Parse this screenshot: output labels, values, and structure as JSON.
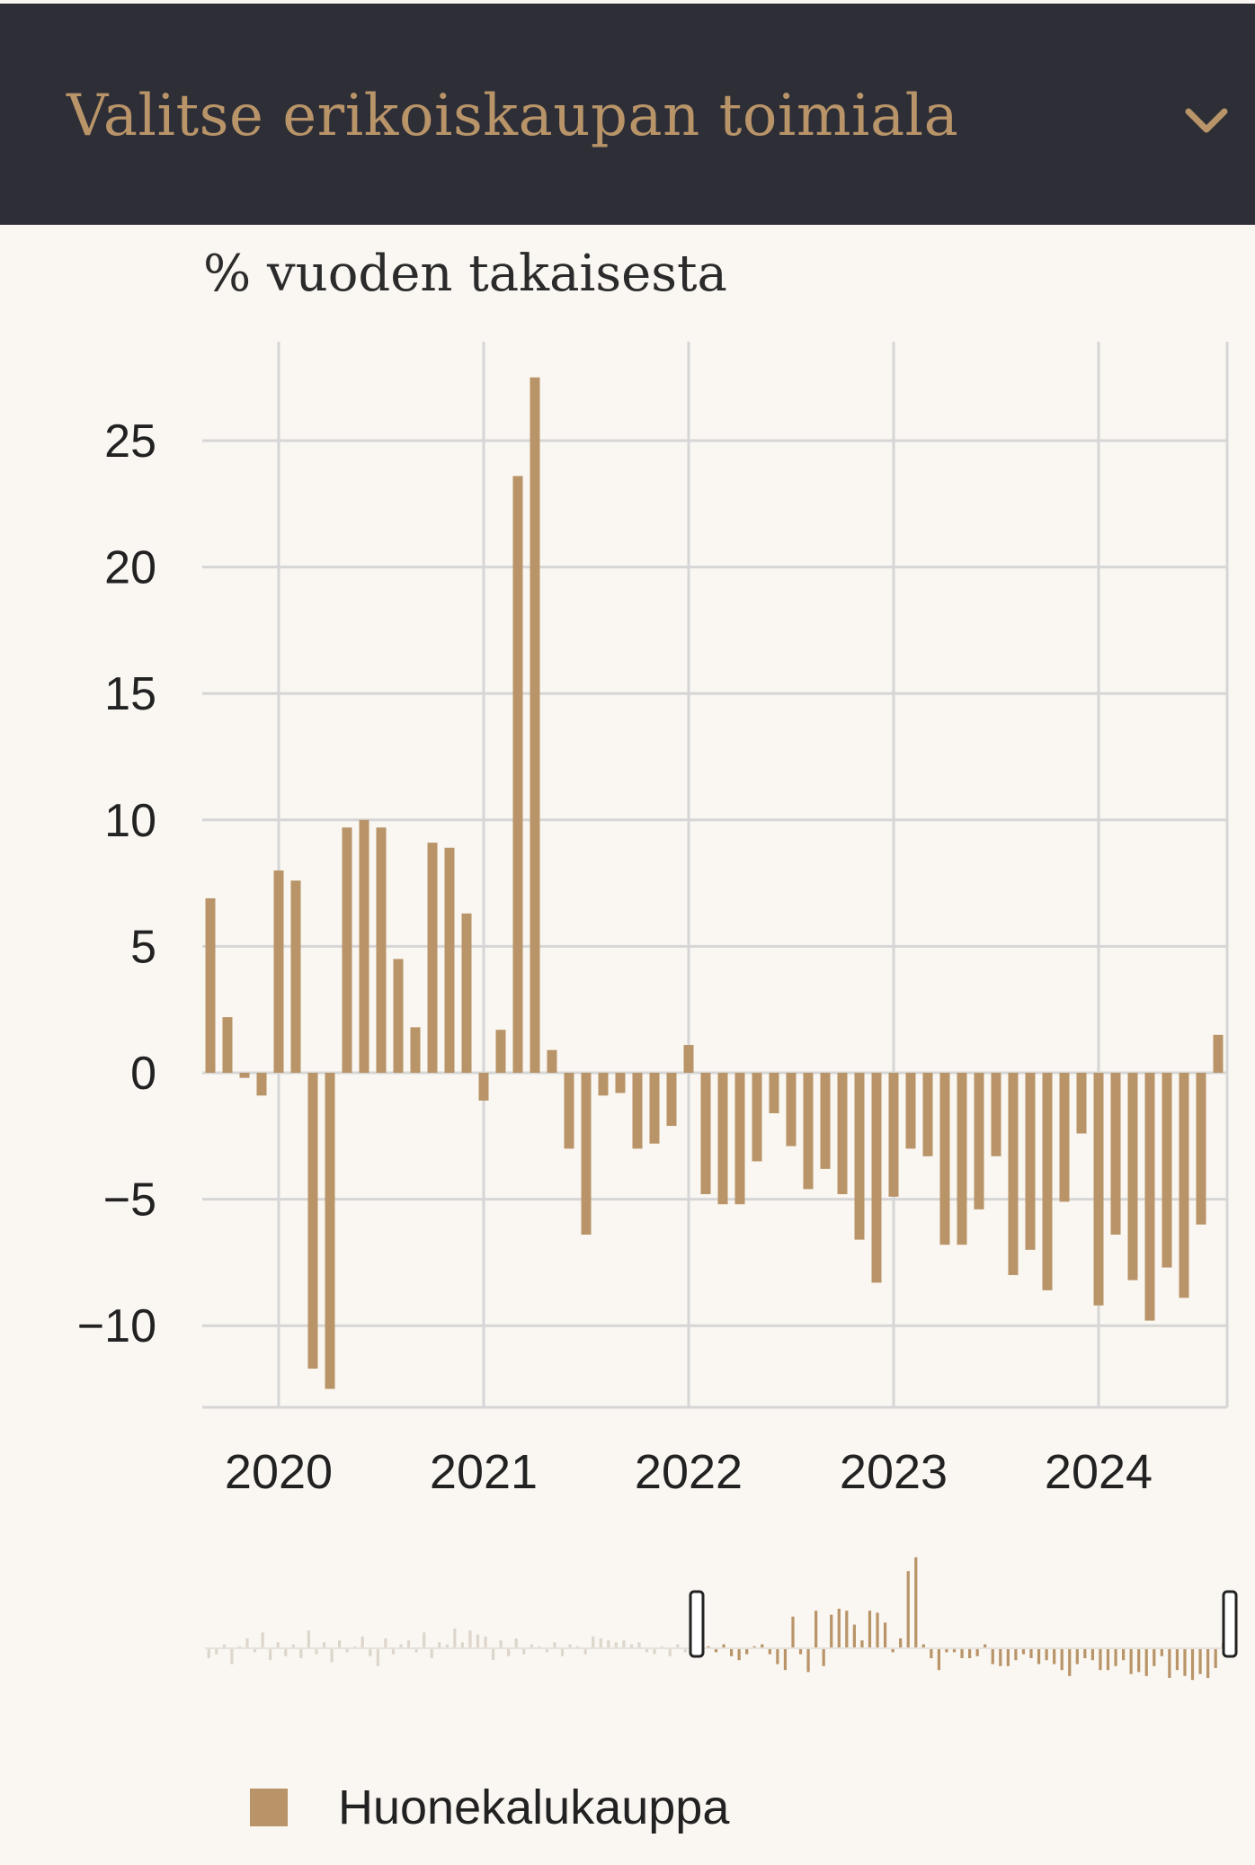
{
  "header": {
    "title": "Valitse erikoiskaupan toimiala",
    "chevron_icon": "chevron-down-icon"
  },
  "colors": {
    "bar": "#b89468",
    "header_bg": "#2e2e37",
    "background": "#faf6f1",
    "grid": "#d6d6d6"
  },
  "chart_data": {
    "type": "bar",
    "ylabel": "% vuoden takaisesta",
    "y_ticks": [
      25,
      20,
      15,
      10,
      5,
      0,
      -5,
      -10
    ],
    "y_tick_labels": [
      "25",
      "20",
      "15",
      "10",
      "5",
      "0",
      "−5",
      "−10"
    ],
    "ylim": [
      -13.3,
      28.8
    ],
    "x_ticks": [
      "2020",
      "2021",
      "2022",
      "2023",
      "2024"
    ],
    "grid": true,
    "series": [
      {
        "name": "Huonekalukauppa",
        "start": "2019-09",
        "values": [
          6.9,
          2.2,
          -0.2,
          -0.9,
          8.0,
          7.6,
          -11.7,
          -12.5,
          9.7,
          10.0,
          9.7,
          4.5,
          1.8,
          9.1,
          8.9,
          6.3,
          -1.1,
          1.7,
          23.6,
          27.5,
          0.9,
          -3.0,
          -6.4,
          -0.9,
          -0.8,
          -3.0,
          -2.8,
          -2.1,
          1.1,
          -4.8,
          -5.2,
          -5.2,
          -3.5,
          -1.6,
          -2.9,
          -4.6,
          -3.8,
          -4.8,
          -6.6,
          -8.3,
          -4.9,
          -3.0,
          -3.3,
          -6.8,
          -6.8,
          -5.4,
          -3.3,
          -8.0,
          -7.0,
          -8.6,
          -5.1,
          -2.4,
          -9.2,
          -6.4,
          -8.2,
          -9.8,
          -7.7,
          -8.9,
          -6.0,
          1.5
        ]
      }
    ],
    "navigator_series": [
      -0.5,
      -0.3,
      0.2,
      -0.8,
      0.1,
      0.5,
      -0.2,
      0.8,
      -0.6,
      0.3,
      -0.4,
      0.2,
      -0.5,
      0.9,
      -0.3,
      0.3,
      -0.7,
      0.4,
      -0.2,
      0.1,
      0.6,
      -0.4,
      -0.9,
      0.5,
      -0.3,
      0.2,
      0.4,
      -0.2,
      0.8,
      -0.5,
      0.3,
      0.2,
      1.0,
      0.3,
      0.9,
      0.7,
      0.6,
      -0.6,
      0.4,
      -0.4,
      0.5,
      -0.3,
      0.2,
      0.1,
      -0.2,
      0.3,
      -0.4,
      0.2,
      0.1,
      -0.3,
      0.6,
      0.5,
      0.4,
      0.3,
      0.4,
      0.2,
      0.3,
      -0.2,
      -0.3,
      0.1,
      -0.4,
      0.2,
      -0.2,
      0.3,
      0.2,
      0.1,
      -0.2,
      0.2,
      -0.4,
      -0.6,
      -0.3,
      0.1,
      0.2,
      -0.3,
      -0.8,
      -1.1,
      1.6,
      -0.3,
      -1.2,
      1.9,
      -0.9,
      1.7,
      2.0,
      1.9,
      1.2,
      0.4,
      1.9,
      1.8,
      1.3,
      -0.2,
      0.5,
      3.9,
      4.6,
      0.2,
      -0.5,
      -1.1,
      -0.2,
      -0.2,
      -0.5,
      -0.5,
      -0.4,
      0.2,
      -0.8,
      -0.9,
      -0.9,
      -0.6,
      -0.3,
      -0.5,
      -0.8,
      -0.6,
      -0.8,
      -1.1,
      -1.4,
      -0.8,
      -0.5,
      -0.6,
      -1.1,
      -1.1,
      -0.9,
      -0.6,
      -1.3,
      -1.2,
      -1.4,
      -0.9,
      -0.4,
      -1.5,
      -1.1,
      -1.4,
      -1.6,
      -1.3,
      -1.5,
      -1.0,
      0.3
    ]
  },
  "legend": {
    "label": "Huonekalukauppa"
  }
}
